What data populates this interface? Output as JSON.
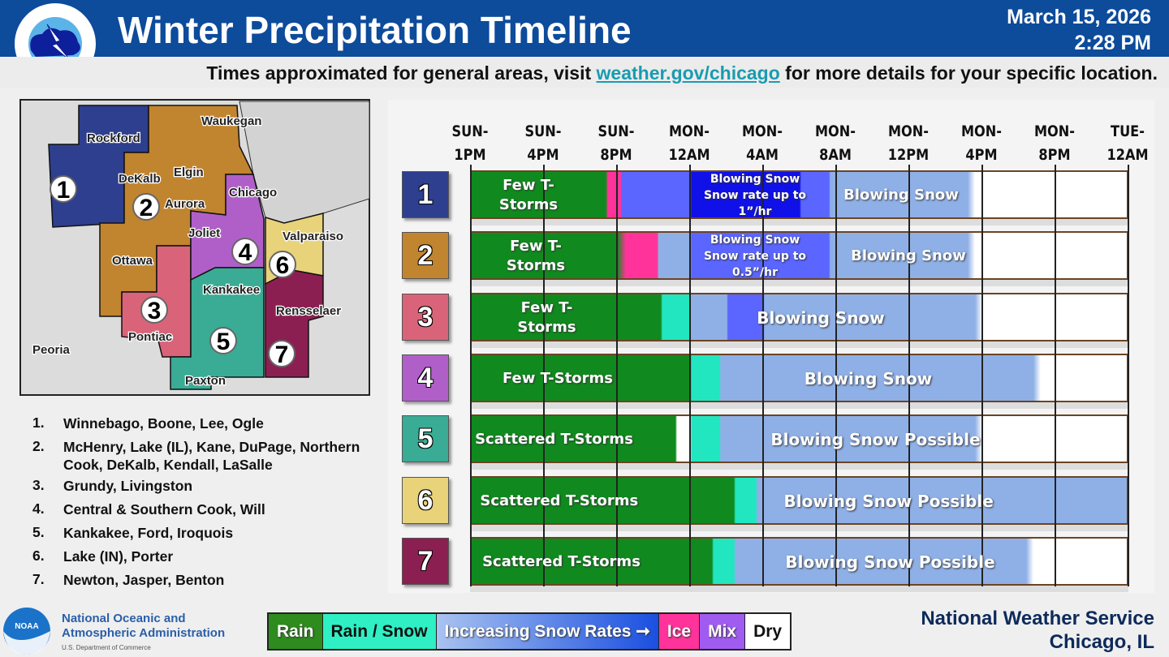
{
  "header": {
    "title": "Winter Precipitation Timeline",
    "date": "March 15, 2026",
    "time": "2:28 PM",
    "logo_text": "NATIONAL WEATHER SERVICE"
  },
  "subtitle": {
    "pre": "Times approximated for general areas, visit ",
    "link": "weather.gov/chicago",
    "post": " for more details for your specific location."
  },
  "map": {
    "cities": [
      "Rockford",
      "Waukegan",
      "DeKalb",
      "Elgin",
      "Chicago",
      "Aurora",
      "Joliet",
      "Valparaiso",
      "Ottawa",
      "Kankakee",
      "Rensselaer",
      "Pontiac",
      "Peoria",
      "Paxton"
    ],
    "zone_colors": {
      "1": "#2e3f8f",
      "2": "#c1842f",
      "3": "#d9647a",
      "4": "#b05fc9",
      "5": "#3aab95",
      "6": "#e8d27a",
      "7": "#8c1f52"
    }
  },
  "zones": [
    {
      "num": "1",
      "counties": "Winnebago, Boone, Lee, Ogle",
      "color": "#2e3f8f"
    },
    {
      "num": "2",
      "counties": "McHenry, Lake (IL), Kane, DuPage, Northern Cook, DeKalb, Kendall, LaSalle",
      "color": "#c1842f"
    },
    {
      "num": "3",
      "counties": "Grundy, Livingston",
      "color": "#d9647a"
    },
    {
      "num": "4",
      "counties": "Central & Southern Cook, Will",
      "color": "#b05fc9"
    },
    {
      "num": "5",
      "counties": "Kankakee, Ford, Iroquois",
      "color": "#3aab95"
    },
    {
      "num": "6",
      "counties": "Lake (IN), Porter",
      "color": "#e8d27a"
    },
    {
      "num": "7",
      "counties": "Newton, Jasper, Benton",
      "color": "#8c1f52"
    }
  ],
  "timeline": {
    "ticks": [
      [
        "SUN-",
        "1PM"
      ],
      [
        "SUN-",
        "4PM"
      ],
      [
        "SUN-",
        "8PM"
      ],
      [
        "MON-",
        "12AM"
      ],
      [
        "MON-",
        "4AM"
      ],
      [
        "MON-",
        "8AM"
      ],
      [
        "MON-",
        "12PM"
      ],
      [
        "MON-",
        "4PM"
      ],
      [
        "MON-",
        "8PM"
      ],
      [
        "TUE-",
        "12AM"
      ]
    ],
    "colors": {
      "rain": "#108a1e",
      "rain_snow": "#22e6c0",
      "ice": "#ff3399",
      "snow_light": "#8fb0e6",
      "snow_mid": "#5a66ff",
      "snow_heavy": "#1010e8",
      "dry": "#ffffff"
    },
    "rows": [
      {
        "num": "1",
        "segments": [
          [
            "rain",
            0,
            1.85
          ],
          [
            "ice",
            1.85,
            2.05
          ],
          [
            "snow_mid",
            2.05,
            3.0
          ],
          [
            "snow_heavy",
            3.0,
            4.5
          ],
          [
            "snow_mid",
            4.5,
            4.9
          ],
          [
            "snow_light",
            4.9,
            6.8
          ]
        ],
        "labels": [
          {
            "text": "Few T-\nStorms",
            "at": 0.8,
            "size": 18
          },
          {
            "text": "Blowing Snow\nSnow rate up to\n1”/hr",
            "at": 3.9,
            "size": 14
          },
          {
            "text": "Blowing Snow",
            "at": 5.9,
            "size": 18
          }
        ]
      },
      {
        "num": "2",
        "segments": [
          [
            "rain",
            0,
            2.0
          ],
          [
            "ice",
            2.1,
            2.55
          ],
          [
            "snow_light",
            2.55,
            3.0
          ],
          [
            "snow_mid",
            3.0,
            4.9
          ],
          [
            "snow_light",
            4.9,
            6.8
          ]
        ],
        "labels": [
          {
            "text": "Few T-\nStorms",
            "at": 0.9,
            "size": 18
          },
          {
            "text": "Blowing Snow\nSnow rate up to\n0.5”/hr",
            "at": 3.9,
            "size": 14
          },
          {
            "text": "Blowing Snow",
            "at": 6.0,
            "size": 18
          }
        ]
      },
      {
        "num": "3",
        "segments": [
          [
            "rain",
            0,
            2.6
          ],
          [
            "rain_snow",
            2.6,
            3.0
          ],
          [
            "snow_light",
            3.0,
            3.5
          ],
          [
            "snow_mid",
            3.5,
            4.0
          ],
          [
            "snow_light",
            4.0,
            6.9
          ]
        ],
        "labels": [
          {
            "text": "Few T-\nStorms",
            "at": 1.05,
            "size": 18
          },
          {
            "text": "Blowing Snow",
            "at": 4.8,
            "size": 20
          }
        ]
      },
      {
        "num": "4",
        "segments": [
          [
            "rain",
            0,
            3.0
          ],
          [
            "rain_snow",
            3.0,
            3.4
          ],
          [
            "snow_light",
            3.4,
            7.7
          ]
        ],
        "labels": [
          {
            "text": "Few T-Storms",
            "at": 1.2,
            "size": 18
          },
          {
            "text": "Blowing Snow",
            "at": 5.45,
            "size": 20
          }
        ]
      },
      {
        "num": "5",
        "segments": [
          [
            "rain",
            0,
            2.8
          ],
          [
            "dry",
            2.8,
            3.0
          ],
          [
            "rain_snow",
            3.0,
            3.4
          ],
          [
            "snow_light",
            3.4,
            6.9
          ]
        ],
        "labels": [
          {
            "text": "Scattered T-Storms",
            "at": 1.15,
            "size": 18
          },
          {
            "text": "Blowing Snow Possible",
            "at": 5.55,
            "size": 20
          }
        ]
      },
      {
        "num": "6",
        "segments": [
          [
            "rain",
            0,
            3.6
          ],
          [
            "rain_snow",
            3.6,
            3.9
          ],
          [
            "snow_light",
            3.9,
            9.0
          ]
        ],
        "labels": [
          {
            "text": "Scattered T-Storms",
            "at": 1.22,
            "size": 18
          },
          {
            "text": "Blowing Snow Possible",
            "at": 5.73,
            "size": 20
          }
        ]
      },
      {
        "num": "7",
        "segments": [
          [
            "rain",
            0,
            3.3
          ],
          [
            "rain_snow",
            3.3,
            3.6
          ],
          [
            "snow_light",
            3.6,
            7.6
          ]
        ],
        "labels": [
          {
            "text": "Scattered T-Storms",
            "at": 1.25,
            "size": 18
          },
          {
            "text": "Blowing Snow Possible",
            "at": 5.75,
            "size": 20
          }
        ]
      }
    ]
  },
  "footer": {
    "noaa_line1": "National Oceanic and",
    "noaa_line2": "Atmospheric Administration",
    "noaa_line3": "U.S. Department of Commerce",
    "noaa_logo": "NOAA",
    "key": [
      {
        "label": "Rain",
        "bg": "#2e8b1e",
        "fg": "#fff"
      },
      {
        "label": "Rain / Snow",
        "bg": "#2ef0c4",
        "fg": "#111"
      },
      {
        "label": "Increasing Snow Rates ➞",
        "bg": "linear-gradient(90deg,#a9c3f0,#1a4fe0)",
        "fg": "#fff"
      },
      {
        "label": "Ice",
        "bg": "#ff3399",
        "fg": "#fff"
      },
      {
        "label": "Mix",
        "bg": "#a05cf0",
        "fg": "#fff"
      },
      {
        "label": "Dry",
        "bg": "#fff",
        "fg": "#111"
      }
    ],
    "nws_line1": "National Weather Service",
    "nws_line2": "Chicago, IL"
  }
}
